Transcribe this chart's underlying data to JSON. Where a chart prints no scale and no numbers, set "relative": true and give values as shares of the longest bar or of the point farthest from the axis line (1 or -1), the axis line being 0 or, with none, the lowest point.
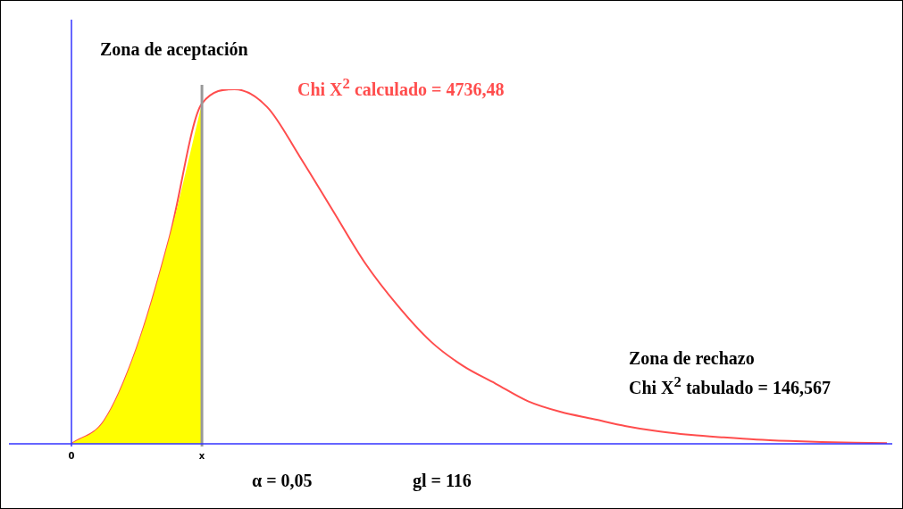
{
  "chart_data": {
    "type": "line",
    "relative": true,
    "categories": [
      "0",
      null,
      null,
      null,
      "x",
      null,
      null,
      null,
      null,
      null,
      null,
      null,
      null,
      null,
      null,
      null,
      null,
      null,
      null,
      null,
      null,
      null,
      null,
      null,
      null,
      null
    ],
    "series": [
      {
        "type": "area",
        "color": "#ffff00",
        "values": [
          0,
          0.065,
          0.27,
          0.58,
          0.96,
          null,
          null,
          null,
          null,
          null,
          null,
          null,
          null,
          null,
          null,
          null,
          null,
          null,
          null,
          null,
          null,
          null,
          null,
          null,
          null,
          null
        ]
      },
      {
        "color": "#ff4d4d",
        "values": [
          0,
          0.065,
          0.27,
          0.58,
          0.96,
          1,
          0.95,
          0.81,
          0.66,
          0.51,
          0.39,
          0.29,
          0.22,
          0.17,
          0.12,
          0.09,
          0.07,
          0.05,
          0.035,
          0.025,
          0.018,
          0.012,
          0.008,
          0.005,
          0.003,
          0.002
        ]
      }
    ],
    "ref_lines": [
      {
        "axis": "x",
        "value": "x",
        "color": "#999999"
      }
    ],
    "annotations": [
      "Zona de aceptación",
      "Chi X$^{2}$ calculado = 4736,48",
      "Zona de rechazo",
      "Chi X$^{2}$ tabulado = 146,567",
      "α = 0,05",
      "gl = 116"
    ]
  }
}
